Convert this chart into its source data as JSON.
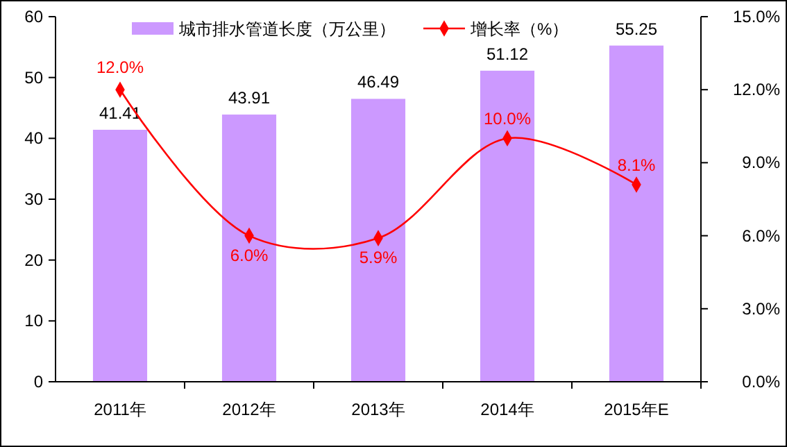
{
  "chart_data": {
    "type": "bar",
    "categories": [
      "2011年",
      "2012年",
      "2013年",
      "2014年",
      "2015年E"
    ],
    "series": [
      {
        "name": "城市排水管道长度（万公里）",
        "color": "#cc99ff",
        "values": [
          41.41,
          43.91,
          46.49,
          51.12,
          55.25
        ],
        "value_labels": [
          "41.41",
          "43.91",
          "46.49",
          "51.12",
          "55.25"
        ]
      },
      {
        "name": "增长率（%）",
        "type": "line",
        "axis": "y2",
        "color": "#ff0000",
        "values": [
          12.0,
          6.0,
          5.9,
          10.0,
          8.1
        ],
        "value_labels": [
          "12.0%",
          "6.0%",
          "5.9%",
          "10.0%",
          "8.1%"
        ]
      }
    ],
    "ylim": [
      0,
      60
    ],
    "yticks": [
      0,
      10,
      20,
      30,
      40,
      50,
      60
    ],
    "y2lim": [
      0,
      15
    ],
    "y2ticks": [
      {
        "value": 0,
        "label": "0.0%"
      },
      {
        "value": 3,
        "label": "3.0%"
      },
      {
        "value": 6,
        "label": "6.0%"
      },
      {
        "value": 9,
        "label": "9.0%"
      },
      {
        "value": 12,
        "label": "12.0%"
      },
      {
        "value": 15,
        "label": "15.0%"
      }
    ],
    "marker": "diamond",
    "legend": "top",
    "grid": false
  }
}
